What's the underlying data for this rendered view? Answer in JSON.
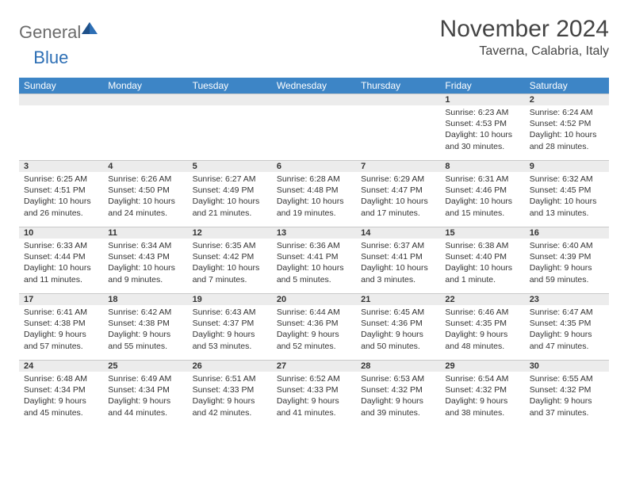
{
  "logo": {
    "general": "General",
    "blue": "Blue"
  },
  "title": "November 2024",
  "location": "Taverna, Calabria, Italy",
  "columns": [
    "Sunday",
    "Monday",
    "Tuesday",
    "Wednesday",
    "Thursday",
    "Friday",
    "Saturday"
  ],
  "colors": {
    "header_bg": "#3d85c6",
    "header_fg": "#ffffff",
    "daynum_bg": "#ececec",
    "border": "#c9c9c9",
    "title_color": "#444444",
    "logo_gray": "#6b6b6b",
    "logo_blue": "#2d6fb5"
  },
  "weeks": [
    [
      null,
      null,
      null,
      null,
      null,
      {
        "n": "1",
        "sunrise": "6:23 AM",
        "sunset": "4:53 PM",
        "daylight": "10 hours and 30 minutes."
      },
      {
        "n": "2",
        "sunrise": "6:24 AM",
        "sunset": "4:52 PM",
        "daylight": "10 hours and 28 minutes."
      }
    ],
    [
      {
        "n": "3",
        "sunrise": "6:25 AM",
        "sunset": "4:51 PM",
        "daylight": "10 hours and 26 minutes."
      },
      {
        "n": "4",
        "sunrise": "6:26 AM",
        "sunset": "4:50 PM",
        "daylight": "10 hours and 24 minutes."
      },
      {
        "n": "5",
        "sunrise": "6:27 AM",
        "sunset": "4:49 PM",
        "daylight": "10 hours and 21 minutes."
      },
      {
        "n": "6",
        "sunrise": "6:28 AM",
        "sunset": "4:48 PM",
        "daylight": "10 hours and 19 minutes."
      },
      {
        "n": "7",
        "sunrise": "6:29 AM",
        "sunset": "4:47 PM",
        "daylight": "10 hours and 17 minutes."
      },
      {
        "n": "8",
        "sunrise": "6:31 AM",
        "sunset": "4:46 PM",
        "daylight": "10 hours and 15 minutes."
      },
      {
        "n": "9",
        "sunrise": "6:32 AM",
        "sunset": "4:45 PM",
        "daylight": "10 hours and 13 minutes."
      }
    ],
    [
      {
        "n": "10",
        "sunrise": "6:33 AM",
        "sunset": "4:44 PM",
        "daylight": "10 hours and 11 minutes."
      },
      {
        "n": "11",
        "sunrise": "6:34 AM",
        "sunset": "4:43 PM",
        "daylight": "10 hours and 9 minutes."
      },
      {
        "n": "12",
        "sunrise": "6:35 AM",
        "sunset": "4:42 PM",
        "daylight": "10 hours and 7 minutes."
      },
      {
        "n": "13",
        "sunrise": "6:36 AM",
        "sunset": "4:41 PM",
        "daylight": "10 hours and 5 minutes."
      },
      {
        "n": "14",
        "sunrise": "6:37 AM",
        "sunset": "4:41 PM",
        "daylight": "10 hours and 3 minutes."
      },
      {
        "n": "15",
        "sunrise": "6:38 AM",
        "sunset": "4:40 PM",
        "daylight": "10 hours and 1 minute."
      },
      {
        "n": "16",
        "sunrise": "6:40 AM",
        "sunset": "4:39 PM",
        "daylight": "9 hours and 59 minutes."
      }
    ],
    [
      {
        "n": "17",
        "sunrise": "6:41 AM",
        "sunset": "4:38 PM",
        "daylight": "9 hours and 57 minutes."
      },
      {
        "n": "18",
        "sunrise": "6:42 AM",
        "sunset": "4:38 PM",
        "daylight": "9 hours and 55 minutes."
      },
      {
        "n": "19",
        "sunrise": "6:43 AM",
        "sunset": "4:37 PM",
        "daylight": "9 hours and 53 minutes."
      },
      {
        "n": "20",
        "sunrise": "6:44 AM",
        "sunset": "4:36 PM",
        "daylight": "9 hours and 52 minutes."
      },
      {
        "n": "21",
        "sunrise": "6:45 AM",
        "sunset": "4:36 PM",
        "daylight": "9 hours and 50 minutes."
      },
      {
        "n": "22",
        "sunrise": "6:46 AM",
        "sunset": "4:35 PM",
        "daylight": "9 hours and 48 minutes."
      },
      {
        "n": "23",
        "sunrise": "6:47 AM",
        "sunset": "4:35 PM",
        "daylight": "9 hours and 47 minutes."
      }
    ],
    [
      {
        "n": "24",
        "sunrise": "6:48 AM",
        "sunset": "4:34 PM",
        "daylight": "9 hours and 45 minutes."
      },
      {
        "n": "25",
        "sunrise": "6:49 AM",
        "sunset": "4:34 PM",
        "daylight": "9 hours and 44 minutes."
      },
      {
        "n": "26",
        "sunrise": "6:51 AM",
        "sunset": "4:33 PM",
        "daylight": "9 hours and 42 minutes."
      },
      {
        "n": "27",
        "sunrise": "6:52 AM",
        "sunset": "4:33 PM",
        "daylight": "9 hours and 41 minutes."
      },
      {
        "n": "28",
        "sunrise": "6:53 AM",
        "sunset": "4:32 PM",
        "daylight": "9 hours and 39 minutes."
      },
      {
        "n": "29",
        "sunrise": "6:54 AM",
        "sunset": "4:32 PM",
        "daylight": "9 hours and 38 minutes."
      },
      {
        "n": "30",
        "sunrise": "6:55 AM",
        "sunset": "4:32 PM",
        "daylight": "9 hours and 37 minutes."
      }
    ]
  ],
  "labels": {
    "sunrise": "Sunrise:",
    "sunset": "Sunset:",
    "daylight": "Daylight:"
  }
}
